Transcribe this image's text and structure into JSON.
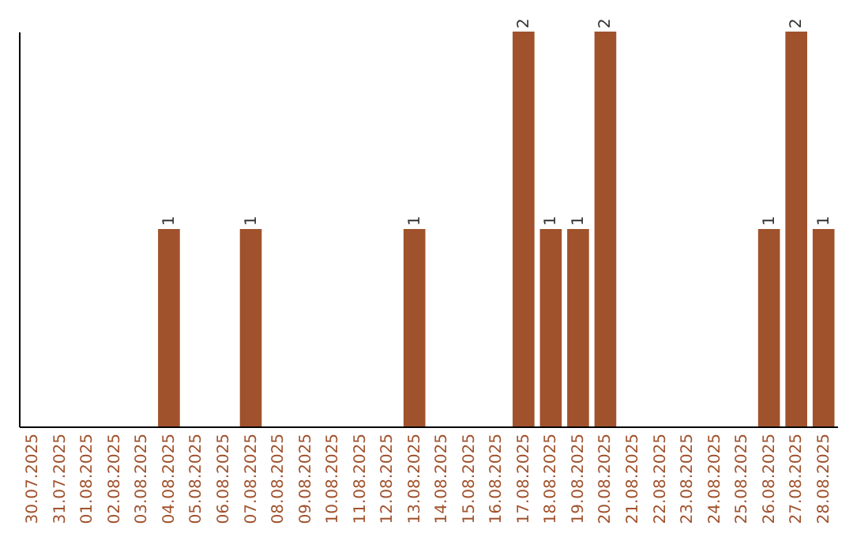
{
  "chart_data": {
    "type": "bar",
    "categories": [
      "30.07.2025",
      "31.07.2025",
      "01.08.2025",
      "02.08.2025",
      "03.08.2025",
      "04.08.2025",
      "05.08.2025",
      "06.08.2025",
      "07.08.2025",
      "08.08.2025",
      "09.08.2025",
      "10.08.2025",
      "11.08.2025",
      "12.08.2025",
      "13.08.2025",
      "14.08.2025",
      "15.08.2025",
      "16.08.2025",
      "17.08.2025",
      "18.08.2025",
      "19.08.2025",
      "20.08.2025",
      "21.08.2025",
      "22.08.2025",
      "23.08.2025",
      "24.08.2025",
      "25.08.2025",
      "26.08.2025",
      "27.08.2025",
      "28.08.2025"
    ],
    "values": [
      0,
      0,
      0,
      0,
      0,
      1,
      0,
      0,
      1,
      0,
      0,
      0,
      0,
      0,
      1,
      0,
      0,
      0,
      2,
      1,
      1,
      2,
      0,
      0,
      0,
      0,
      0,
      1,
      2,
      1
    ],
    "value_labels": [
      null,
      null,
      null,
      null,
      null,
      "1",
      null,
      null,
      "1",
      null,
      null,
      null,
      null,
      null,
      "1",
      null,
      null,
      null,
      "2",
      "1",
      "1",
      "2",
      null,
      null,
      null,
      null,
      null,
      "1",
      "2",
      "1"
    ],
    "color": "#a0522d",
    "tick_labels": "x"
  }
}
